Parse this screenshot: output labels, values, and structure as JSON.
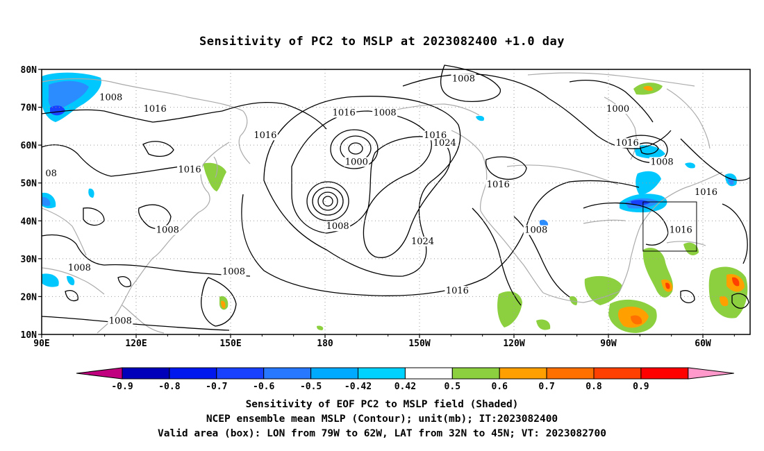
{
  "title": "Sensitivity of PC2 to MSLP at 2023082400 +1.0 day",
  "map": {
    "lat_ticks": [
      "10N",
      "20N",
      "30N",
      "40N",
      "50N",
      "60N",
      "70N",
      "80N"
    ],
    "lon_ticks": [
      "90E",
      "120E",
      "150E",
      "180",
      "150W",
      "120W",
      "90W",
      "60W"
    ],
    "contour_labels": [
      {
        "text": "1008",
        "lon": 112,
        "lat": 72
      },
      {
        "text": "1016",
        "lon": 126,
        "lat": 69
      },
      {
        "text": "1016",
        "lon": 161,
        "lat": 62
      },
      {
        "text": "1016",
        "lon": 137,
        "lat": 53
      },
      {
        "text": "08",
        "lon": 93,
        "lat": 52
      },
      {
        "text": "1008",
        "lon": 130,
        "lat": 37
      },
      {
        "text": "1008",
        "lon": 102,
        "lat": 27
      },
      {
        "text": "1008",
        "lon": 151,
        "lat": 26
      },
      {
        "text": "1008",
        "lon": 115,
        "lat": 13
      },
      {
        "text": "1016",
        "lon": -174,
        "lat": 68
      },
      {
        "text": "1008",
        "lon": -161,
        "lat": 68
      },
      {
        "text": "1016",
        "lon": -145,
        "lat": 62
      },
      {
        "text": "1024",
        "lon": -142,
        "lat": 60
      },
      {
        "text": "1000",
        "lon": -170,
        "lat": 55
      },
      {
        "text": "1008",
        "lon": -176,
        "lat": 38
      },
      {
        "text": "1024",
        "lon": -149,
        "lat": 34
      },
      {
        "text": "1016",
        "lon": -138,
        "lat": 21
      },
      {
        "text": "1008",
        "lon": -136,
        "lat": 77
      },
      {
        "text": "1016",
        "lon": -125,
        "lat": 49
      },
      {
        "text": "1008",
        "lon": -113,
        "lat": 37
      },
      {
        "text": "1000",
        "lon": -87,
        "lat": 69
      },
      {
        "text": "1016",
        "lon": -84,
        "lat": 60
      },
      {
        "text": "1008",
        "lon": -73,
        "lat": 55
      },
      {
        "text": "1016",
        "lon": -59,
        "lat": 47
      },
      {
        "text": "1016",
        "lon": -67,
        "lat": 37
      }
    ],
    "valid_box": {
      "lon_w": -79,
      "lon_e": -62,
      "lat_s": 32,
      "lat_n": 45
    }
  },
  "colorbar": {
    "labels": [
      "-0.9",
      "-0.8",
      "-0.7",
      "-0.6",
      "-0.5",
      "-0.42",
      "0.42",
      "0.5",
      "0.6",
      "0.7",
      "0.8",
      "0.9"
    ],
    "colors": [
      "#c0007f",
      "#0000bb",
      "#0018ee",
      "#1840ff",
      "#2878ff",
      "#00aaff",
      "#00d2ff",
      "#ffffff",
      "#8cd040",
      "#ffa000",
      "#ff7000",
      "#ff4000",
      "#ff0000",
      "#ff99cc"
    ]
  },
  "captions": {
    "line1": "Sensitivity of EOF PC2 to MSLP field (Shaded)",
    "line2": "NCEP ensemble mean MSLP (Contour); unit(mb); IT:2023082400",
    "line3": "Valid area (box): LON from 79W to 62W, LAT from 32N to 45N; VT: 2023082700"
  }
}
